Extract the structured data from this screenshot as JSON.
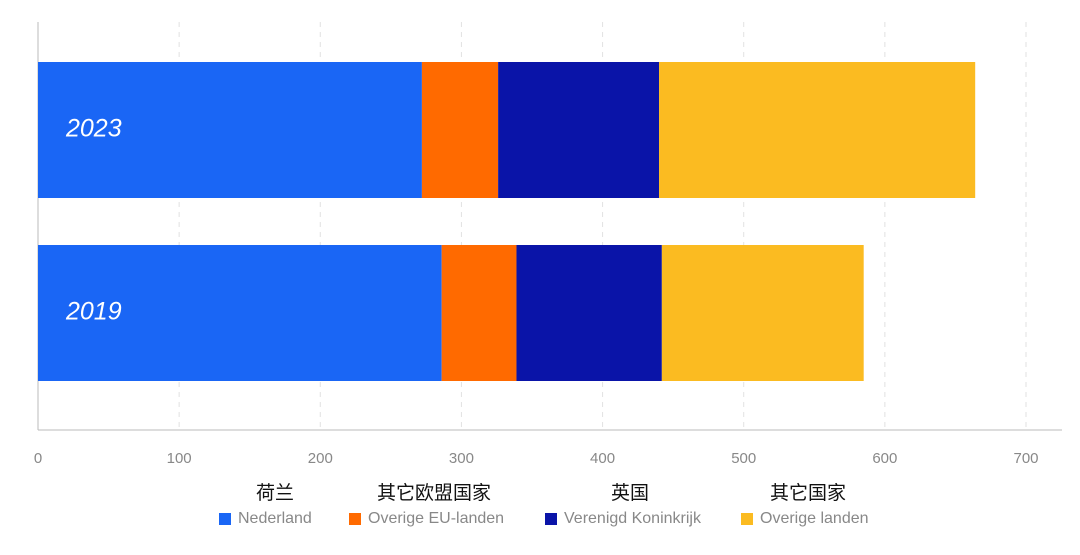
{
  "chart_data": {
    "type": "stacked_bar_horizontal",
    "categories": [
      "2023",
      "2019"
    ],
    "series": [
      {
        "name": "Nederland",
        "label_cn": "荷兰",
        "color": "#1a66f5",
        "values": [
          272,
          286
        ]
      },
      {
        "name": "Overige EU-landen",
        "label_cn": "其它欧盟国家",
        "color": "#ff6a00",
        "values": [
          54,
          53
        ]
      },
      {
        "name": "Verenigd Koninkrijk",
        "label_cn": "英国",
        "color": "#0a14a8",
        "values": [
          114,
          103
        ]
      },
      {
        "name": "Overige landen",
        "label_cn": "其它国家",
        "color": "#fbbb21",
        "values": [
          224,
          143
        ]
      }
    ],
    "xlim": [
      0,
      700
    ],
    "xticks": [
      0,
      100,
      200,
      300,
      400,
      500,
      600,
      700
    ],
    "grid": true
  }
}
